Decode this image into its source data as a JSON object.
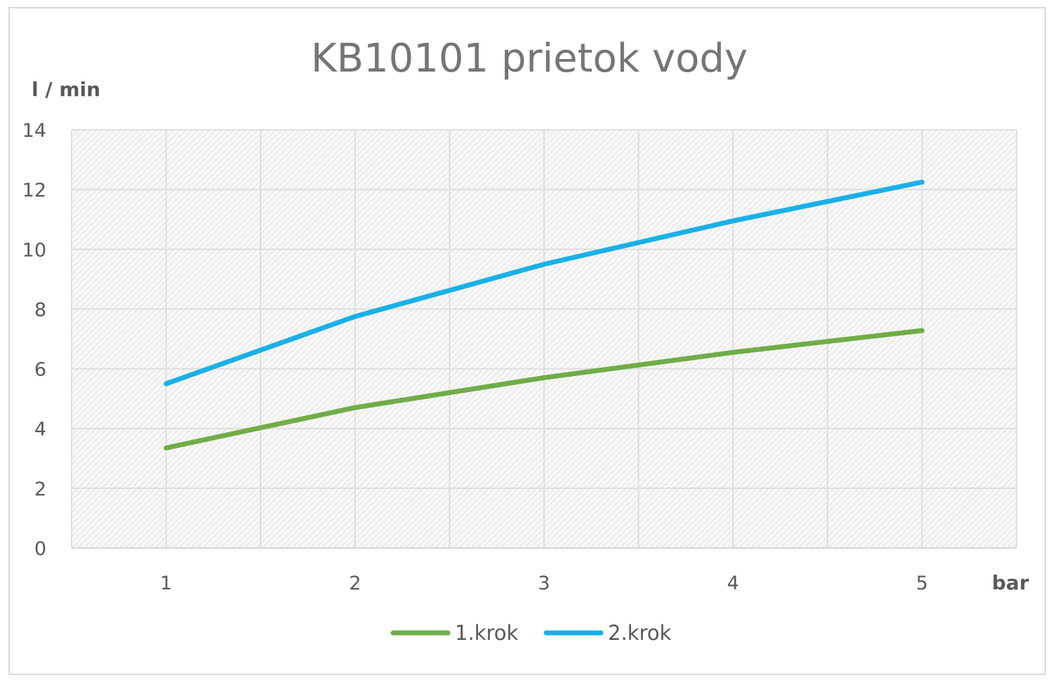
{
  "chart_data": {
    "type": "line",
    "title": "KB10101 prietok vody",
    "ylabel": "l / min",
    "xlabel": "bar",
    "categories": [
      "1",
      "2",
      "3",
      "4",
      "5"
    ],
    "ylim": [
      0,
      14
    ],
    "yticks": [
      "0",
      "2",
      "4",
      "6",
      "8",
      "10",
      "12",
      "14"
    ],
    "grid": true,
    "legend_position": "bottom",
    "series": [
      {
        "name": "1.krok",
        "color": "#70ad47",
        "values": [
          3.35,
          4.7,
          5.7,
          6.55,
          7.28
        ]
      },
      {
        "name": "2.krok",
        "color": "#1ab0e8",
        "values": [
          5.5,
          7.75,
          9.5,
          10.95,
          12.25
        ]
      }
    ]
  }
}
